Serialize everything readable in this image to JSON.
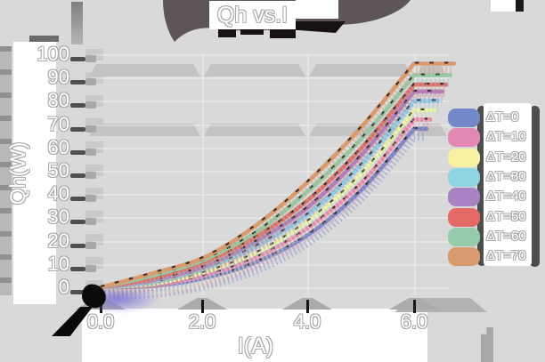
{
  "title": "Qh vs.I",
  "axes": {
    "x": {
      "label": "I(A)",
      "tick_labels": [
        "0.0",
        "2.0",
        "4.0",
        "6.0"
      ],
      "min": 0,
      "max": 6
    },
    "y": {
      "label": "Qh(W)",
      "tick_labels": [
        "100",
        "90",
        "80",
        "70",
        "60",
        "50",
        "40",
        "30",
        "20",
        "10",
        "0"
      ],
      "min": 0,
      "max": 100
    }
  },
  "legend": {
    "items": [
      {
        "label": "ΔT=0",
        "color": "#7388c6"
      },
      {
        "label": "ΔT=10",
        "color": "#e288b4"
      },
      {
        "label": "ΔT=20",
        "color": "#f6f2a2"
      },
      {
        "label": "ΔT=30",
        "color": "#8fd4e2"
      },
      {
        "label": "ΔT=40",
        "color": "#aa83c5"
      },
      {
        "label": "ΔT=50",
        "color": "#e46a68"
      },
      {
        "label": "ΔT=60",
        "color": "#94cbaa"
      },
      {
        "label": "ΔT=70",
        "color": "#d89a6f"
      }
    ]
  },
  "colors": {
    "background": "#d9d9d9",
    "panel": "#ffffff",
    "grid_band": "#c3c3c3",
    "title_shadow": "#5e5556",
    "text": "#ffffff",
    "text_outline": "#a9a9a9"
  },
  "chart_data": {
    "type": "line",
    "title": "Qh vs.I",
    "xlabel": "I(A)",
    "ylabel": "Qh(W)",
    "x": [
      0,
      1,
      2,
      3,
      4,
      5,
      6
    ],
    "xlim": [
      0,
      6
    ],
    "ylim": [
      0,
      100
    ],
    "grid": "horizontal-bands",
    "legend_position": "right",
    "series": [
      {
        "name": "ΔT=0",
        "color": "#7388c6",
        "values": [
          0,
          0.6,
          4,
          11,
          23,
          42,
          68
        ]
      },
      {
        "name": "ΔT=10",
        "color": "#e288b4",
        "values": [
          0,
          1,
          5,
          13,
          26,
          45,
          72
        ]
      },
      {
        "name": "ΔT=20",
        "color": "#f6f2a2",
        "values": [
          0,
          1.5,
          6.5,
          15,
          29,
          49,
          76
        ]
      },
      {
        "name": "ΔT=30",
        "color": "#8fd4e2",
        "values": [
          0,
          2,
          8,
          18,
          32,
          53,
          80
        ]
      },
      {
        "name": "ΔT=40",
        "color": "#aa83c5",
        "values": [
          0,
          3,
          9,
          20,
          35,
          57,
          84
        ]
      },
      {
        "name": "ΔT=50",
        "color": "#e46a68",
        "values": [
          0,
          4,
          11,
          22,
          38,
          60,
          87
        ]
      },
      {
        "name": "ΔT=60",
        "color": "#94cbaa",
        "values": [
          0,
          5,
          12,
          24,
          42,
          64,
          91
        ]
      },
      {
        "name": "ΔT=70",
        "color": "#d89a6f",
        "values": [
          0,
          6,
          13,
          27,
          46,
          69,
          96
        ]
      }
    ]
  }
}
